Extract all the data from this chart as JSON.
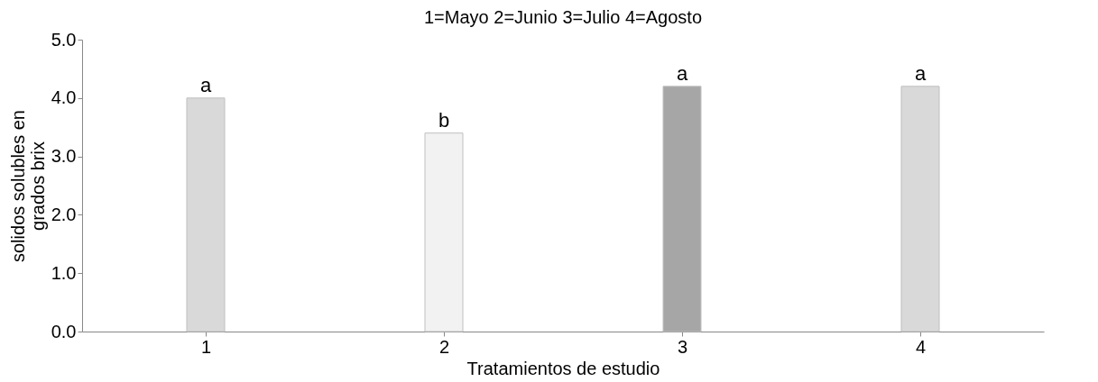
{
  "chart_data": {
    "type": "bar",
    "title": "1=Mayo    2=Junio    3=Julio    4=Agosto",
    "xlabel": "Tratamientos  de estudio",
    "ylabel": "solidos solubles en\ngrados brix",
    "categories": [
      "1",
      "2",
      "3",
      "4"
    ],
    "values": [
      4.0,
      3.4,
      4.2,
      4.2
    ],
    "colors": [
      "#d9d9d9",
      "#f2f2f2",
      "#a6a6a6",
      "#d9d9d9"
    ],
    "ylim": [
      0,
      5
    ],
    "yticks": [
      {
        "value": 0,
        "label": "0.0"
      },
      {
        "value": 1,
        "label": "1.0"
      },
      {
        "value": 2,
        "label": "2.0"
      },
      {
        "value": 3,
        "label": "3.0"
      },
      {
        "value": 4,
        "label": "4.0"
      },
      {
        "value": 5,
        "label": "5.0"
      }
    ],
    "annotations": [
      {
        "text": "a",
        "x": "1",
        "y": 4.0
      },
      {
        "text": "b",
        "x": "2",
        "y": 3.4
      },
      {
        "text": "a",
        "x": "3",
        "y": 4.2
      },
      {
        "text": "a",
        "x": "4",
        "y": 4.2
      }
    ],
    "grid": false
  }
}
